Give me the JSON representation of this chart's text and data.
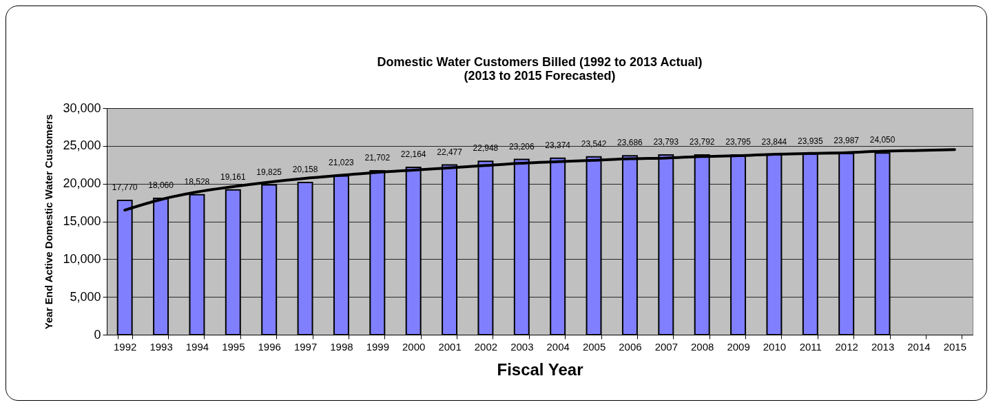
{
  "chart_data": {
    "type": "bar",
    "title": "Domestic Water Customers Billed (1992 to 2013 Actual)",
    "subtitle": "(2013 to 2015 Forecasted)",
    "xlabel": "Fiscal Year",
    "ylabel": "Year End Active Domestic Water Customers",
    "categories": [
      "1992",
      "1993",
      "1994",
      "1995",
      "1996",
      "1997",
      "1998",
      "1999",
      "2000",
      "2001",
      "2002",
      "2003",
      "2004",
      "2005",
      "2006",
      "2007",
      "2008",
      "2009",
      "2010",
      "2011",
      "2012",
      "2013",
      "2014",
      "2015"
    ],
    "series": [
      {
        "color": "#8080ff",
        "values": [
          17770,
          18060,
          18528,
          19161,
          19825,
          20158,
          21023,
          21702,
          22164,
          22477,
          22948,
          23206,
          23374,
          23542,
          23686,
          23793,
          23792,
          23795,
          23844,
          23935,
          23987,
          24050,
          null,
          null
        ],
        "value_labels": [
          "17,770",
          "18,060",
          "18,528",
          "19,161",
          "19,825",
          "20,158",
          "21,023",
          "21,702",
          "22,164",
          "22,477",
          "22,948",
          "23,206",
          "23,374",
          "23,542",
          "23,686",
          "23,793",
          "23,792",
          "23,795",
          "23,844",
          "23,935",
          "23,987",
          "24,050",
          null,
          null
        ]
      },
      {
        "type": "line",
        "color": "#000000",
        "values": [
          16500,
          17900,
          18900,
          19600,
          20200,
          20700,
          21100,
          21500,
          21800,
          22100,
          22400,
          22700,
          22900,
          23100,
          23300,
          23400,
          23600,
          23700,
          23900,
          24000,
          24100,
          24300,
          24400,
          24500
        ]
      }
    ],
    "ylim": [
      0,
      30000
    ],
    "yticks": [
      0,
      {
        "value": 5000,
        "label": "5,000"
      },
      {
        "value": 10000,
        "label": "10,000"
      },
      {
        "value": 15000,
        "label": "15,000"
      },
      {
        "value": 20000,
        "label": "20,000"
      },
      {
        "value": 25000,
        "label": "25,000"
      },
      {
        "value": 30000,
        "label": "30,000"
      }
    ],
    "grid": "y"
  }
}
